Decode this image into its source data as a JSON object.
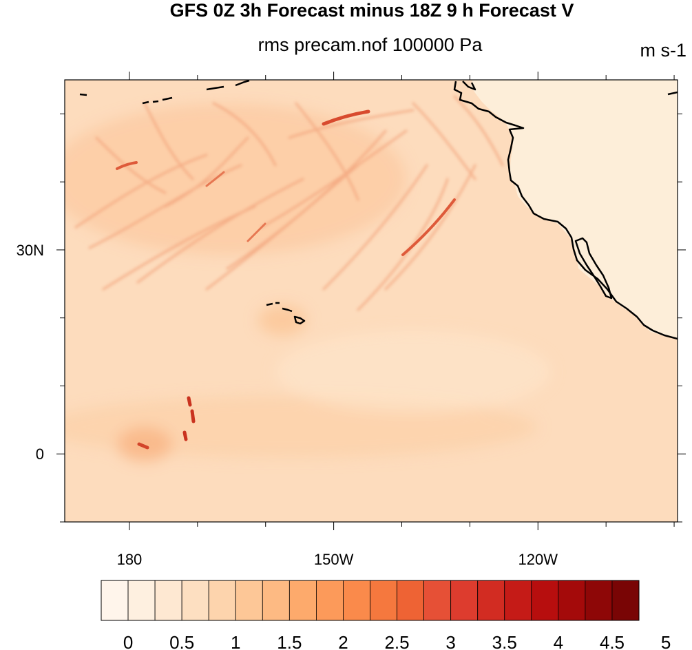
{
  "figure": {
    "title": "GFS 0Z 3h Forecast minus 18Z 9 h Forecast V",
    "subtitle": "rms precam.nof 100000 Pa",
    "units": "m s-1"
  },
  "map": {
    "projection": "cylindrical equidistant",
    "lon_range": [
      -189.5,
      -99.5
    ],
    "lat_range": [
      -10,
      55
    ],
    "lon_ticks": [
      {
        "value": -180,
        "label": "180"
      },
      {
        "value": -150,
        "label": "150W"
      },
      {
        "value": -120,
        "label": "120W"
      }
    ],
    "lat_ticks": [
      {
        "value": 30,
        "label": "30N"
      },
      {
        "value": 0,
        "label": "0"
      }
    ],
    "land_color": "#fdeed9",
    "coastline_color": "#000000"
  },
  "colorbar": {
    "label_values": [
      "0",
      "0.5",
      "1",
      "1.5",
      "2",
      "2.5",
      "3",
      "3.5",
      "4",
      "4.5",
      "5"
    ],
    "colors": [
      "#fff5eb",
      "#fef0e0",
      "#fee8d2",
      "#fddfc1",
      "#fdd4ad",
      "#fdc797",
      "#fdba83",
      "#fdaa6c",
      "#fc9a5a",
      "#fa8a4b",
      "#f5783e",
      "#ee6334",
      "#e65036",
      "#dd3c2e",
      "#d22c22",
      "#c51b17",
      "#b70e0e",
      "#a40a0a",
      "#8e0707",
      "#790505"
    ]
  },
  "chart_data": {
    "type": "heatmap",
    "title": "GFS 0Z 3h Forecast minus 18Z 9 h Forecast V",
    "subtitle": "rms precam.nof 100000 Pa",
    "units": "m s-1",
    "xlabel": "",
    "ylabel": "",
    "xlim": [
      -189.5,
      -99.5
    ],
    "ylim": [
      -10,
      55
    ],
    "levels": [
      0,
      0.25,
      0.5,
      0.75,
      1,
      1.25,
      1.5,
      1.75,
      2,
      2.25,
      2.5,
      2.75,
      3,
      3.25,
      3.5,
      3.75,
      4,
      4.25,
      4.5,
      4.75,
      5
    ],
    "background_value": 0.75,
    "features": [
      {
        "kind": "streak",
        "lon": -135,
        "lat": 36,
        "value": 3.5
      },
      {
        "kind": "streak",
        "lon": -146,
        "lat": 51.5,
        "value": 3.5
      },
      {
        "kind": "streak",
        "lon": -181,
        "lat": 42,
        "value": 3.0
      },
      {
        "kind": "streak",
        "lon": -170,
        "lat": 40,
        "value": 2.5
      },
      {
        "kind": "streak",
        "lon": -173,
        "lat": 4.5,
        "value": 4.0
      },
      {
        "kind": "streak",
        "lon": -173,
        "lat": 1.5,
        "value": 3.5
      },
      {
        "kind": "blob",
        "lon": -181,
        "lat": 1.5,
        "value": 2.5
      },
      {
        "kind": "blob",
        "lon": -157,
        "lat": 20,
        "value": 1.5
      },
      {
        "kind": "band",
        "lon": -150,
        "lat": 5,
        "value": 1.25
      },
      {
        "kind": "band",
        "lon": -160,
        "lat": 40,
        "value": 1.75
      }
    ]
  }
}
